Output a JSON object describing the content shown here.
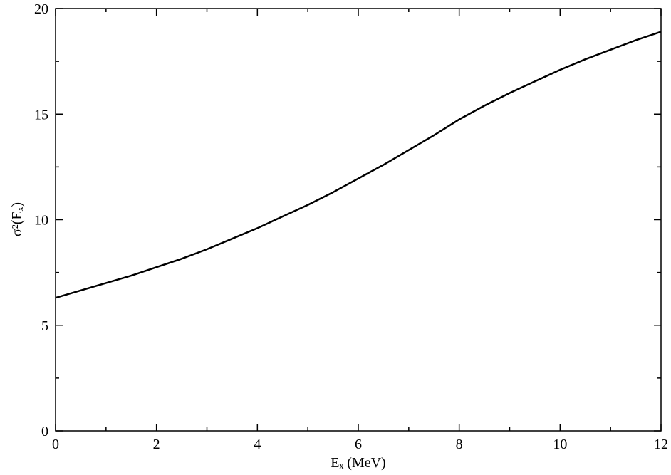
{
  "chart_data": {
    "type": "line",
    "xlabel": "Eₓ (MeV)",
    "ylabel": "σ²(Eₓ)",
    "x": [
      0,
      0.5,
      1,
      1.5,
      2,
      2.5,
      3,
      3.5,
      4,
      4.5,
      5,
      5.5,
      6,
      6.5,
      7,
      7.5,
      8,
      8.5,
      9,
      9.5,
      10,
      10.5,
      11,
      11.5,
      12
    ],
    "y": [
      6.3,
      6.65,
      7.0,
      7.35,
      7.75,
      8.15,
      8.6,
      9.1,
      9.6,
      10.15,
      10.7,
      11.3,
      11.95,
      12.6,
      13.3,
      14.0,
      14.75,
      15.4,
      16.0,
      16.55,
      17.1,
      17.6,
      18.05,
      18.5,
      18.9
    ],
    "color": "#000000",
    "xlim": [
      0,
      12
    ],
    "ylim": [
      0,
      20
    ],
    "xticks": [
      0,
      2,
      4,
      6,
      8,
      10,
      12
    ],
    "yticks": [
      0,
      5,
      10,
      15,
      20
    ],
    "xminor_ticks": [
      1,
      3,
      5,
      7,
      9,
      11
    ],
    "yminor_ticks": [
      2.5,
      7.5,
      12.5,
      17.5
    ],
    "grid": false
  }
}
